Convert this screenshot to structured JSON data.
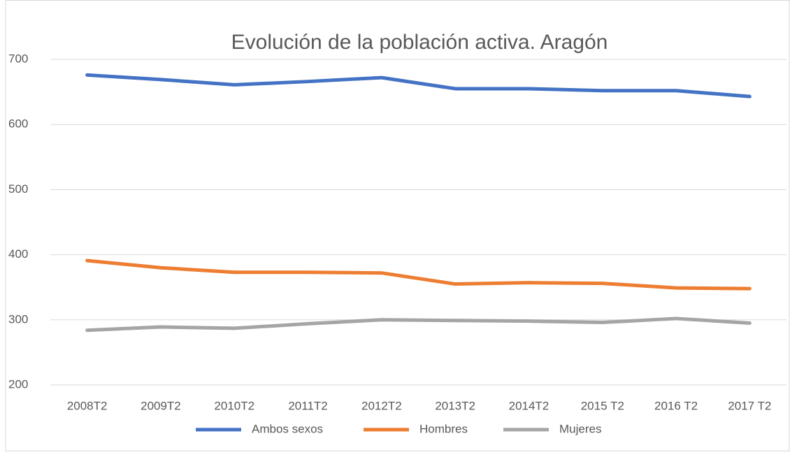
{
  "chart_data": {
    "type": "line",
    "title": "Evolución de la población activa. Aragón",
    "categories": [
      "2008T2",
      "2009T2",
      "2010T2",
      "2011T2",
      "2012T2",
      "2013T2",
      "2014T2",
      "2015 T2",
      "2016 T2",
      "2017 T2"
    ],
    "series": [
      {
        "name": "Ambos sexos",
        "color": "#4472c4",
        "values": [
          676,
          669,
          661,
          666,
          672,
          655,
          655,
          652,
          652,
          643
        ]
      },
      {
        "name": "Hombres",
        "color": "#ed7d31",
        "values": [
          391,
          380,
          373,
          373,
          372,
          355,
          357,
          356,
          349,
          348
        ]
      },
      {
        "name": "Mujeres",
        "color": "#a5a5a5",
        "values": [
          284,
          289,
          287,
          294,
          300,
          299,
          298,
          296,
          302,
          295
        ]
      }
    ],
    "ylim": [
      200,
      700
    ],
    "yticks": [
      200,
      300,
      400,
      500,
      600,
      700
    ],
    "grid": true,
    "legend": "bottom"
  }
}
